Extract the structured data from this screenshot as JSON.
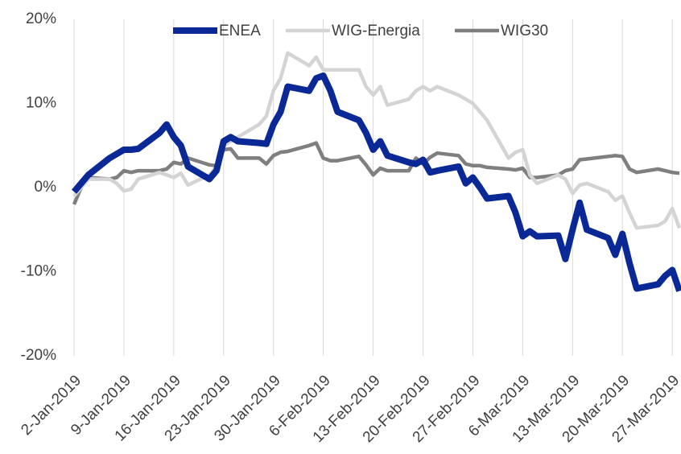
{
  "chart_data": {
    "type": "line",
    "x": [
      "2019-01-02",
      "2019-01-03",
      "2019-01-04",
      "2019-01-07",
      "2019-01-08",
      "2019-01-09",
      "2019-01-10",
      "2019-01-11",
      "2019-01-14",
      "2019-01-15",
      "2019-01-16",
      "2019-01-17",
      "2019-01-18",
      "2019-01-21",
      "2019-01-22",
      "2019-01-23",
      "2019-01-24",
      "2019-01-25",
      "2019-01-28",
      "2019-01-29",
      "2019-01-30",
      "2019-01-31",
      "2019-02-01",
      "2019-02-04",
      "2019-02-05",
      "2019-02-06",
      "2019-02-07",
      "2019-02-08",
      "2019-02-11",
      "2019-02-12",
      "2019-02-13",
      "2019-02-14",
      "2019-02-15",
      "2019-02-18",
      "2019-02-19",
      "2019-02-20",
      "2019-02-21",
      "2019-02-22",
      "2019-02-25",
      "2019-02-26",
      "2019-02-27",
      "2019-02-28",
      "2019-03-01",
      "2019-03-04",
      "2019-03-05",
      "2019-03-06",
      "2019-03-07",
      "2019-03-08",
      "2019-03-11",
      "2019-03-12",
      "2019-03-13",
      "2019-03-14",
      "2019-03-15",
      "2019-03-18",
      "2019-03-19",
      "2019-03-20",
      "2019-03-21",
      "2019-03-22",
      "2019-03-25",
      "2019-03-26",
      "2019-03-27",
      "2019-03-28"
    ],
    "series": [
      {
        "name": "ENEA",
        "color": "#0a2896",
        "values": [
          -0.5,
          0.5,
          1.5,
          3.5,
          4,
          4.5,
          4.5,
          4.6,
          6.5,
          7.5,
          6,
          5,
          2.5,
          1,
          2,
          5.5,
          6,
          5.5,
          5.3,
          5.2,
          7.5,
          9,
          12,
          11.5,
          13,
          13.3,
          11.5,
          9,
          8,
          6.5,
          4.5,
          5.5,
          3.8,
          3,
          2.8,
          3.3,
          1.8,
          2,
          2.5,
          0.5,
          1.2,
          0,
          -1.3,
          -1,
          -3,
          -5.8,
          -5.2,
          -5.8,
          -5.7,
          -8.5,
          -5,
          -1.8,
          -5,
          -6,
          -8,
          -5.5,
          -9,
          -12,
          -11.5,
          -10.5,
          -9.8,
          -12.3
        ]
      },
      {
        "name": "WIG-Energia",
        "color": "#d4d4d4",
        "values": [
          -1,
          0,
          1,
          1,
          0.5,
          -0.4,
          -0.2,
          1,
          1.8,
          1.5,
          1.2,
          1.7,
          0.3,
          1.5,
          2.5,
          5,
          5.5,
          6,
          7.5,
          8.5,
          11.5,
          13,
          16,
          14.5,
          15.5,
          14,
          14,
          14,
          14,
          12,
          11,
          12,
          9.8,
          10.5,
          11.5,
          12,
          11.5,
          12,
          11,
          10.5,
          10,
          9,
          8,
          3.5,
          4.2,
          4.5,
          1.5,
          0.5,
          1.5,
          1,
          -0.7,
          0.3,
          0.5,
          -0.5,
          -1.5,
          -1,
          -3,
          -4.8,
          -4.5,
          -4,
          -2.5,
          -4.8
        ]
      },
      {
        "name": "WIG30",
        "color": "#7f7f7f",
        "values": [
          -2,
          0,
          1.2,
          1,
          1.2,
          2,
          1.8,
          2,
          2,
          2.2,
          3,
          2.8,
          3.5,
          2.7,
          2.6,
          4.5,
          4.6,
          3.5,
          3.5,
          2.8,
          3.8,
          4.2,
          4.3,
          5,
          5.3,
          3.5,
          3.2,
          3.2,
          3.7,
          2.7,
          1.5,
          2.3,
          2,
          2,
          3.5,
          2.8,
          3.6,
          4.1,
          3.8,
          2.8,
          2.6,
          2.6,
          2.4,
          2.2,
          2.1,
          2.3,
          1.2,
          1.2,
          1.5,
          2,
          2.2,
          3.3,
          3.4,
          3.7,
          3.8,
          3.7,
          2.2,
          1.8,
          2.2,
          2,
          1.8,
          1.7
        ]
      }
    ],
    "xlim": [
      "2019-01-02",
      "2019-03-28"
    ],
    "xticks": [
      {
        "value": "2019-01-02",
        "label": "2-Jan-2019"
      },
      {
        "value": "2019-01-09",
        "label": "9-Jan-2019"
      },
      {
        "value": "2019-01-16",
        "label": "16-Jan-2019"
      },
      {
        "value": "2019-01-23",
        "label": "23-Jan-2019"
      },
      {
        "value": "2019-01-30",
        "label": "30-Jan-2019"
      },
      {
        "value": "2019-02-06",
        "label": "6-Feb-2019"
      },
      {
        "value": "2019-02-13",
        "label": "13-Feb-2019"
      },
      {
        "value": "2019-02-20",
        "label": "20-Feb-2019"
      },
      {
        "value": "2019-02-27",
        "label": "27-Feb-2019"
      },
      {
        "value": "2019-03-06",
        "label": "6-Mar-2019"
      },
      {
        "value": "2019-03-13",
        "label": "13-Mar-2019"
      },
      {
        "value": "2019-03-20",
        "label": "20-Mar-2019"
      },
      {
        "value": "2019-03-27",
        "label": "27-Mar-2019"
      }
    ],
    "ylim": [
      -20,
      20
    ],
    "yticks": [
      {
        "value": -20,
        "label": "-20%"
      },
      {
        "value": -10,
        "label": "-10%"
      },
      {
        "value": 0,
        "label": "0%"
      },
      {
        "value": 10,
        "label": "10%"
      },
      {
        "value": 20,
        "label": "20%"
      }
    ],
    "grid": "x",
    "legend": "top"
  }
}
